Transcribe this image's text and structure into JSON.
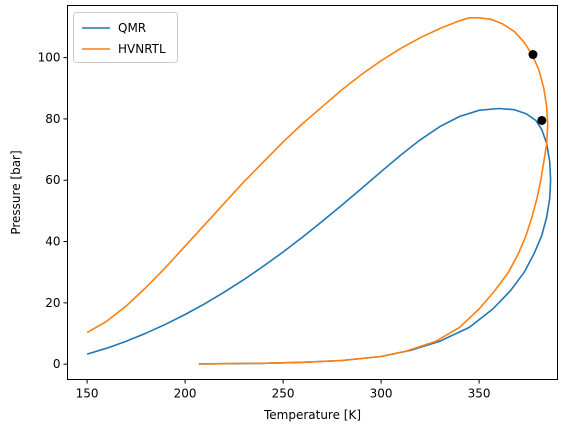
{
  "chart_data": {
    "type": "line",
    "xlabel": "Temperature [K]",
    "ylabel": "Pressure [bar]",
    "xlim": [
      140,
      390
    ],
    "ylim": [
      -5,
      117
    ],
    "xticks": [
      150,
      200,
      250,
      300,
      350
    ],
    "yticks": [
      0,
      20,
      40,
      60,
      80,
      100
    ],
    "grid": false,
    "legend_position": "upper-left",
    "series": [
      {
        "name": "QMR",
        "color": "#1f77b4",
        "points": [
          [
            150,
            3.3
          ],
          [
            160,
            5.2
          ],
          [
            170,
            7.5
          ],
          [
            180,
            10.1
          ],
          [
            190,
            13.0
          ],
          [
            200,
            16.2
          ],
          [
            210,
            19.7
          ],
          [
            220,
            23.5
          ],
          [
            230,
            27.6
          ],
          [
            240,
            32.0
          ],
          [
            250,
            36.6
          ],
          [
            260,
            41.5
          ],
          [
            270,
            46.6
          ],
          [
            280,
            51.9
          ],
          [
            290,
            57.3
          ],
          [
            300,
            62.8
          ],
          [
            310,
            68.2
          ],
          [
            320,
            73.2
          ],
          [
            330,
            77.5
          ],
          [
            340,
            80.8
          ],
          [
            350,
            82.8
          ],
          [
            360,
            83.4
          ],
          [
            368,
            83.0
          ],
          [
            374,
            81.7
          ],
          [
            379,
            79.5
          ],
          [
            382,
            76.5
          ],
          [
            384.5,
            72.0
          ],
          [
            386,
            66.0
          ],
          [
            386.5,
            60.0
          ],
          [
            386,
            54.0
          ],
          [
            384.5,
            48.0
          ],
          [
            382,
            42.0
          ],
          [
            378,
            36.0
          ],
          [
            373,
            30.0
          ],
          [
            366,
            24.0
          ],
          [
            357,
            18.0
          ],
          [
            345,
            12.0
          ],
          [
            330,
            7.5
          ],
          [
            315,
            4.5
          ],
          [
            300,
            2.5
          ],
          [
            280,
            1.2
          ],
          [
            260,
            0.6
          ],
          [
            240,
            0.3
          ],
          [
            220,
            0.15
          ],
          [
            207,
            0.1
          ]
        ]
      },
      {
        "name": "HVNRTL",
        "color": "#ff7f0e",
        "points": [
          [
            150,
            10.3
          ],
          [
            160,
            14.0
          ],
          [
            170,
            19.0
          ],
          [
            180,
            25.0
          ],
          [
            190,
            31.5
          ],
          [
            200,
            38.5
          ],
          [
            210,
            45.5
          ],
          [
            220,
            52.5
          ],
          [
            230,
            59.5
          ],
          [
            240,
            66.0
          ],
          [
            250,
            72.5
          ],
          [
            260,
            78.5
          ],
          [
            270,
            84.0
          ],
          [
            280,
            89.5
          ],
          [
            290,
            94.5
          ],
          [
            300,
            99.0
          ],
          [
            310,
            103.0
          ],
          [
            320,
            106.5
          ],
          [
            330,
            109.5
          ],
          [
            340,
            112.0
          ],
          [
            345,
            113.0
          ],
          [
            350,
            113.0
          ],
          [
            356,
            112.5
          ],
          [
            362,
            111.0
          ],
          [
            368,
            108.5
          ],
          [
            373,
            105.0
          ],
          [
            377,
            101.0
          ],
          [
            380.5,
            96.0
          ],
          [
            383,
            90.0
          ],
          [
            384.5,
            84.0
          ],
          [
            385,
            78.0
          ],
          [
            384.5,
            72.0
          ],
          [
            383,
            66.0
          ],
          [
            381.5,
            60.0
          ],
          [
            379.5,
            54.0
          ],
          [
            377,
            48.0
          ],
          [
            374,
            42.0
          ],
          [
            370,
            36.0
          ],
          [
            365,
            30.0
          ],
          [
            358,
            24.0
          ],
          [
            350,
            18.0
          ],
          [
            340,
            12.0
          ],
          [
            328,
            7.5
          ],
          [
            313,
            4.3
          ],
          [
            300,
            2.5
          ],
          [
            280,
            1.2
          ],
          [
            260,
            0.6
          ],
          [
            240,
            0.3
          ],
          [
            220,
            0.15
          ],
          [
            207,
            0.1
          ]
        ]
      }
    ],
    "markers": [
      {
        "x": 377.5,
        "y": 101,
        "color": "#000000"
      },
      {
        "x": 382,
        "y": 79.5,
        "color": "#000000"
      }
    ]
  }
}
